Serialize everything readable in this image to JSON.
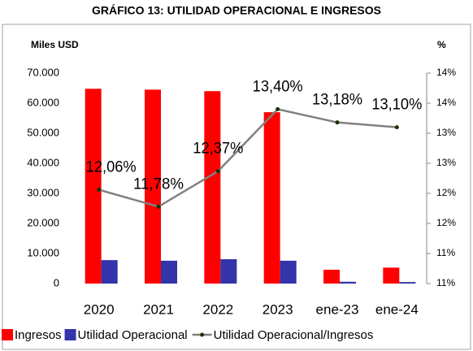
{
  "chart_data": {
    "type": "bar",
    "title": "GRÁFICO 13: UTILIDAD OPERACIONAL E INGRESOS",
    "y_label": "Miles USD",
    "y2_label": "%",
    "categories": [
      "2020",
      "2021",
      "2022",
      "2023",
      "ene-23",
      "ene-24"
    ],
    "series": [
      {
        "name": "Ingresos",
        "color": "#ff0000",
        "type": "bar",
        "values": [
          64800,
          64500,
          64000,
          57000,
          4600,
          5300
        ]
      },
      {
        "name": "Utilidad Operacional",
        "color": "#3333aa",
        "type": "bar",
        "values": [
          7800,
          7600,
          8100,
          7600,
          600,
          500
        ]
      },
      {
        "name": "Utilidad Operacional/Ingresos",
        "color": "#808080",
        "marker_color": "#1a3300",
        "type": "line",
        "axis": "y2",
        "values": [
          12.06,
          11.78,
          12.37,
          13.4,
          13.18,
          13.1
        ],
        "value_labels": [
          "12,06%",
          "11,78%",
          "12,37%",
          "13,40%",
          "13,18%",
          "13,10%"
        ]
      }
    ],
    "ylim": [
      0,
      70000
    ],
    "yticks": [
      0,
      {
        "value": 10000,
        "label": "10.000"
      },
      {
        "value": 20000,
        "label": "20.000"
      },
      {
        "value": 30000,
        "label": "30.000"
      },
      {
        "value": 40000,
        "label": "40.000"
      },
      {
        "value": 50000,
        "label": "50.000"
      },
      {
        "value": 60000,
        "label": "60.000"
      },
      {
        "value": 70000,
        "label": "70.000"
      }
    ],
    "y2lim": [
      10.5,
      14
    ],
    "y2ticks": [
      {
        "value": 10.5,
        "label": "11%"
      },
      {
        "value": 11,
        "label": "11%"
      },
      {
        "value": 11.5,
        "label": "12%"
      },
      {
        "value": 12,
        "label": "12%"
      },
      {
        "value": 12.5,
        "label": "13%"
      },
      {
        "value": 13,
        "label": "13%"
      },
      {
        "value": 13.5,
        "label": "14%"
      },
      {
        "value": 14,
        "label": "14%"
      }
    ],
    "legend": "bottom"
  }
}
